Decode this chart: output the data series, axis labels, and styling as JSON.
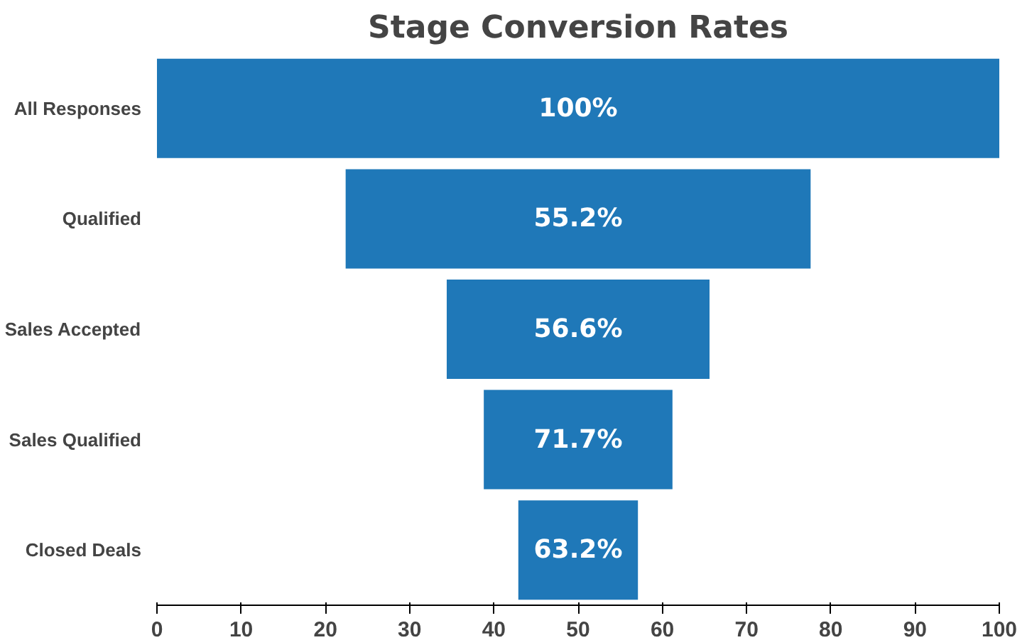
{
  "chart_data": {
    "type": "bar",
    "orientation": "horizontal",
    "title": "Stage Conversion Rates",
    "categories": [
      "All Responses",
      "Qualified",
      "Sales Accepted",
      "Sales Qualified",
      "Closed Deals"
    ],
    "values": [
      100,
      55.2,
      31.2,
      22.4,
      14.2
    ],
    "base": [
      0,
      22.4,
      34.4,
      38.8,
      42.9
    ],
    "annotations": [
      {
        "text": "100%",
        "y": "All Responses"
      },
      {
        "text": "55.2%",
        "y": "Qualified"
      },
      {
        "text": "56.6%",
        "y": "Sales Accepted"
      },
      {
        "text": "71.7%",
        "y": "Sales Qualified"
      },
      {
        "text": "63.2%",
        "y": "Closed Deals"
      }
    ],
    "color": "#1f78b8",
    "xlim": [
      0,
      100
    ],
    "xticks": [
      0,
      10,
      20,
      30,
      40,
      50,
      60,
      70,
      80,
      90,
      100
    ],
    "grid": false
  }
}
